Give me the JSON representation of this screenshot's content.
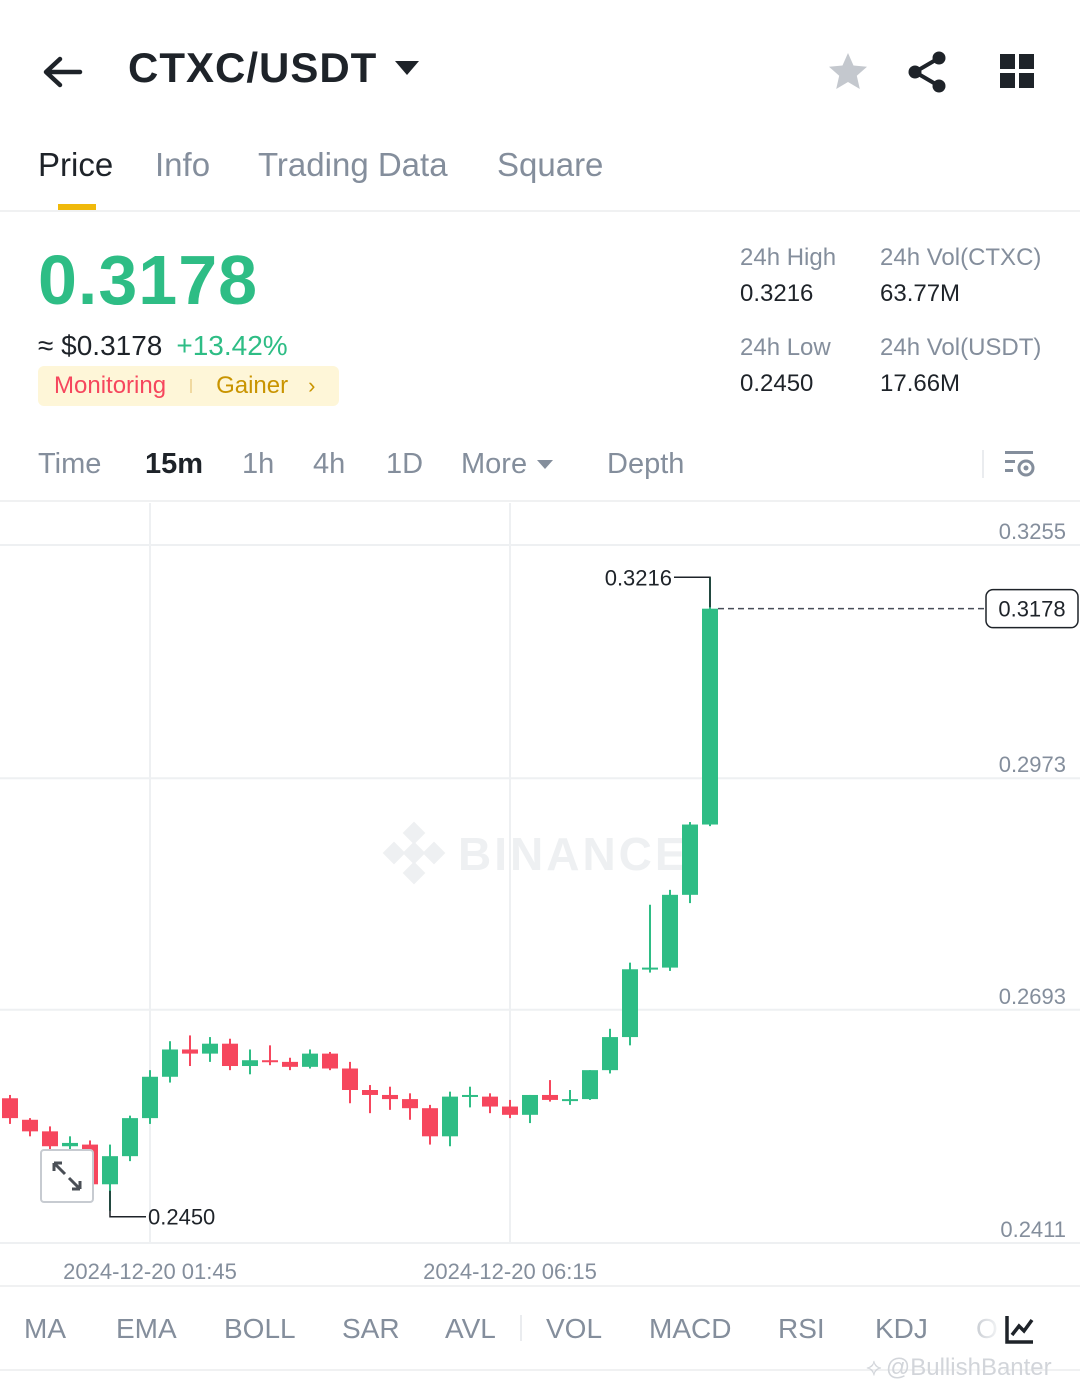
{
  "header": {
    "pair": "CTXC/USDT",
    "icons": [
      "back-arrow-icon",
      "favorite-star-icon",
      "share-icon",
      "grid-menu-icon"
    ]
  },
  "tabs": [
    {
      "label": "Price",
      "active": true
    },
    {
      "label": "Info",
      "active": false
    },
    {
      "label": "Trading Data",
      "active": false
    },
    {
      "label": "Square",
      "active": false
    }
  ],
  "price": {
    "last": "0.3178",
    "fiat": "≈ $0.3178",
    "change": "+13.42%",
    "tag_monitoring": "Monitoring",
    "tag_gainer": "Gainer",
    "colors": {
      "up": "#2ebd85",
      "down": "#f6465d",
      "accent": "#f0b90b"
    }
  },
  "stats": {
    "high_label": "24h High",
    "high_value": "0.3216",
    "low_label": "24h Low",
    "low_value": "0.2450",
    "vol_base_label": "24h Vol(CTXC)",
    "vol_base_value": "63.77M",
    "vol_quote_label": "24h Vol(USDT)",
    "vol_quote_value": "17.66M"
  },
  "intervals": [
    {
      "label": "Time",
      "active": false
    },
    {
      "label": "15m",
      "active": true
    },
    {
      "label": "1h",
      "active": false
    },
    {
      "label": "4h",
      "active": false
    },
    {
      "label": "1D",
      "active": false
    },
    {
      "label": "More",
      "active": false
    },
    {
      "label": "Depth",
      "active": false
    }
  ],
  "chart_data": {
    "type": "candlestick",
    "interval": "15m",
    "y_ticks": [
      0.3255,
      0.2973,
      0.2693,
      0.2411
    ],
    "y_tick_labels": [
      "0.3255",
      "0.2973",
      "0.2693",
      "0.2411"
    ],
    "ylim": [
      0.2411,
      0.3255
    ],
    "x_labels": [
      "2024-12-20 01:45",
      "2024-12-20 06:15"
    ],
    "high_marker": "0.3216",
    "low_marker": "0.2450",
    "last_price_label": "0.3178",
    "watermark": "BINANCE",
    "grid": true,
    "candles": [
      {
        "o": 0.2586,
        "h": 0.259,
        "l": 0.2555,
        "c": 0.2562
      },
      {
        "o": 0.256,
        "h": 0.2562,
        "l": 0.254,
        "c": 0.2546
      },
      {
        "o": 0.2546,
        "h": 0.2552,
        "l": 0.2508,
        "c": 0.2528
      },
      {
        "o": 0.2528,
        "h": 0.254,
        "l": 0.2512,
        "c": 0.2532
      },
      {
        "o": 0.253,
        "h": 0.2535,
        "l": 0.246,
        "c": 0.2482
      },
      {
        "o": 0.2482,
        "h": 0.253,
        "l": 0.245,
        "c": 0.2516
      },
      {
        "o": 0.2516,
        "h": 0.2565,
        "l": 0.251,
        "c": 0.2562
      },
      {
        "o": 0.2562,
        "h": 0.262,
        "l": 0.2555,
        "c": 0.2612
      },
      {
        "o": 0.2612,
        "h": 0.2655,
        "l": 0.2605,
        "c": 0.2645
      },
      {
        "o": 0.2645,
        "h": 0.2662,
        "l": 0.2625,
        "c": 0.264
      },
      {
        "o": 0.264,
        "h": 0.266,
        "l": 0.263,
        "c": 0.2652
      },
      {
        "o": 0.2652,
        "h": 0.2658,
        "l": 0.262,
        "c": 0.2625
      },
      {
        "o": 0.2625,
        "h": 0.2645,
        "l": 0.2615,
        "c": 0.2632
      },
      {
        "o": 0.2632,
        "h": 0.265,
        "l": 0.2626,
        "c": 0.263
      },
      {
        "o": 0.263,
        "h": 0.2635,
        "l": 0.262,
        "c": 0.2624
      },
      {
        "o": 0.2624,
        "h": 0.2645,
        "l": 0.2622,
        "c": 0.264
      },
      {
        "o": 0.264,
        "h": 0.2642,
        "l": 0.262,
        "c": 0.2622
      },
      {
        "o": 0.2622,
        "h": 0.263,
        "l": 0.258,
        "c": 0.2596
      },
      {
        "o": 0.2596,
        "h": 0.2602,
        "l": 0.2568,
        "c": 0.259
      },
      {
        "o": 0.259,
        "h": 0.26,
        "l": 0.2572,
        "c": 0.2585
      },
      {
        "o": 0.2585,
        "h": 0.2592,
        "l": 0.256,
        "c": 0.2574
      },
      {
        "o": 0.2574,
        "h": 0.2578,
        "l": 0.253,
        "c": 0.254
      },
      {
        "o": 0.254,
        "h": 0.2594,
        "l": 0.2528,
        "c": 0.2588
      },
      {
        "o": 0.2588,
        "h": 0.26,
        "l": 0.2575,
        "c": 0.259
      },
      {
        "o": 0.2588,
        "h": 0.2592,
        "l": 0.2568,
        "c": 0.2576
      },
      {
        "o": 0.2576,
        "h": 0.2584,
        "l": 0.2562,
        "c": 0.2566
      },
      {
        "o": 0.2566,
        "h": 0.259,
        "l": 0.2556,
        "c": 0.259
      },
      {
        "o": 0.259,
        "h": 0.2608,
        "l": 0.2582,
        "c": 0.2584
      },
      {
        "o": 0.2584,
        "h": 0.2596,
        "l": 0.2578,
        "c": 0.2585
      },
      {
        "o": 0.2585,
        "h": 0.262,
        "l": 0.2584,
        "c": 0.262
      },
      {
        "o": 0.262,
        "h": 0.267,
        "l": 0.2616,
        "c": 0.266
      },
      {
        "o": 0.266,
        "h": 0.275,
        "l": 0.265,
        "c": 0.2742
      },
      {
        "o": 0.2742,
        "h": 0.282,
        "l": 0.2738,
        "c": 0.2744
      },
      {
        "o": 0.2744,
        "h": 0.2838,
        "l": 0.274,
        "c": 0.2832
      },
      {
        "o": 0.2832,
        "h": 0.292,
        "l": 0.2822,
        "c": 0.2917
      },
      {
        "o": 0.2917,
        "h": 0.3216,
        "l": 0.2915,
        "c": 0.3178
      }
    ]
  },
  "indicators": [
    {
      "label": "MA"
    },
    {
      "label": "EMA"
    },
    {
      "label": "BOLL"
    },
    {
      "label": "SAR"
    },
    {
      "label": "AVL"
    },
    {
      "label": "VOL"
    },
    {
      "label": "MACD"
    },
    {
      "label": "RSI"
    },
    {
      "label": "KDJ"
    },
    {
      "label": "O"
    }
  ],
  "credit": "@BullishBanter"
}
